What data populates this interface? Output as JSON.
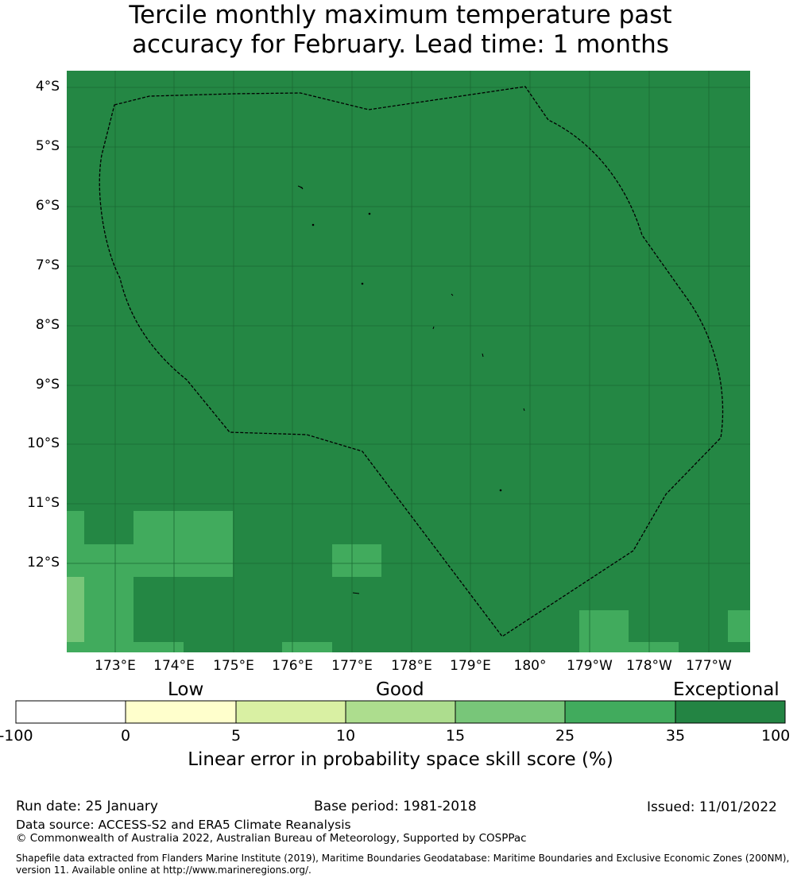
{
  "title": {
    "line1": "Tercile monthly maximum temperature past",
    "line2": "accuracy for February. Lead time: 1 months"
  },
  "map": {
    "background_color": "#248744",
    "lat_labels": [
      "4°S",
      "5°S",
      "6°S",
      "7°S",
      "8°S",
      "9°S",
      "10°S",
      "11°S",
      "12°S"
    ],
    "lon_labels": [
      "173°E",
      "174°E",
      "175°E",
      "176°E",
      "177°E",
      "178°E",
      "179°E",
      "180°",
      "179°W",
      "178°W",
      "177°W"
    ]
  },
  "legend": {
    "categories": [
      "Low",
      "Good",
      "Exceptional"
    ],
    "boundaries": [
      "-100",
      "0",
      "5",
      "10",
      "15",
      "25",
      "35",
      "100"
    ],
    "colors": [
      "#ffffff",
      "#ffffcc",
      "#d9f0a3",
      "#addd8e",
      "#78c679",
      "#41ab5d",
      "#238443"
    ],
    "title": "Linear error in probability space skill score (%)"
  },
  "footer": {
    "run_date": "Run date: 25 January",
    "base_period": "Base period: 1981-2018",
    "issued": "Issued: 11/01/2022",
    "data_source": "Data source: ACCESS-S2 and ERA5 Climate Reanalysis",
    "copyright": "© Commonwealth of Australia 2022, Australian Bureau of Meteorology, Supported by COSPPac",
    "shapefile_line1": "Shapefile data extracted from Flanders Marine Institute (2019), Maritime Boundaries Geodatabase: Maritime Boundaries and Exclusive Economic Zones (200NM),",
    "shapefile_line2": "version 11. Available online at http://www.marineregions.org/."
  }
}
